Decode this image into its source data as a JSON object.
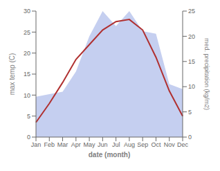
{
  "chart_data": {
    "type": "line",
    "categories": [
      "Jan",
      "Feb",
      "Mar",
      "Apr",
      "May",
      "Jun",
      "Jul",
      "Aug",
      "Sep",
      "Oct",
      "Nov",
      "Dec"
    ],
    "xlabel": "date (month)",
    "ylabel": "max temp (C)",
    "y2label": "med. precipitation (kg/m2)",
    "ylim": [
      0,
      30
    ],
    "yticks": [
      0,
      5,
      10,
      15,
      20,
      25,
      30
    ],
    "y2lim": [
      0,
      25
    ],
    "y2ticks": [
      0,
      5,
      10,
      15,
      20,
      25
    ],
    "grid": false,
    "series": [
      {
        "type": "area",
        "axis": "y2",
        "color": "#c5cff0",
        "values": [
          8.0,
          8.5,
          9.0,
          13.0,
          20.0,
          25.0,
          22.0,
          25.0,
          21.0,
          20.5,
          10.5,
          9.5
        ]
      },
      {
        "type": "line",
        "color": "#b03030",
        "values": [
          3.5,
          8.0,
          13.0,
          18.5,
          22.0,
          25.5,
          27.5,
          28.0,
          25.5,
          19.0,
          11.0,
          5.0
        ]
      }
    ]
  }
}
